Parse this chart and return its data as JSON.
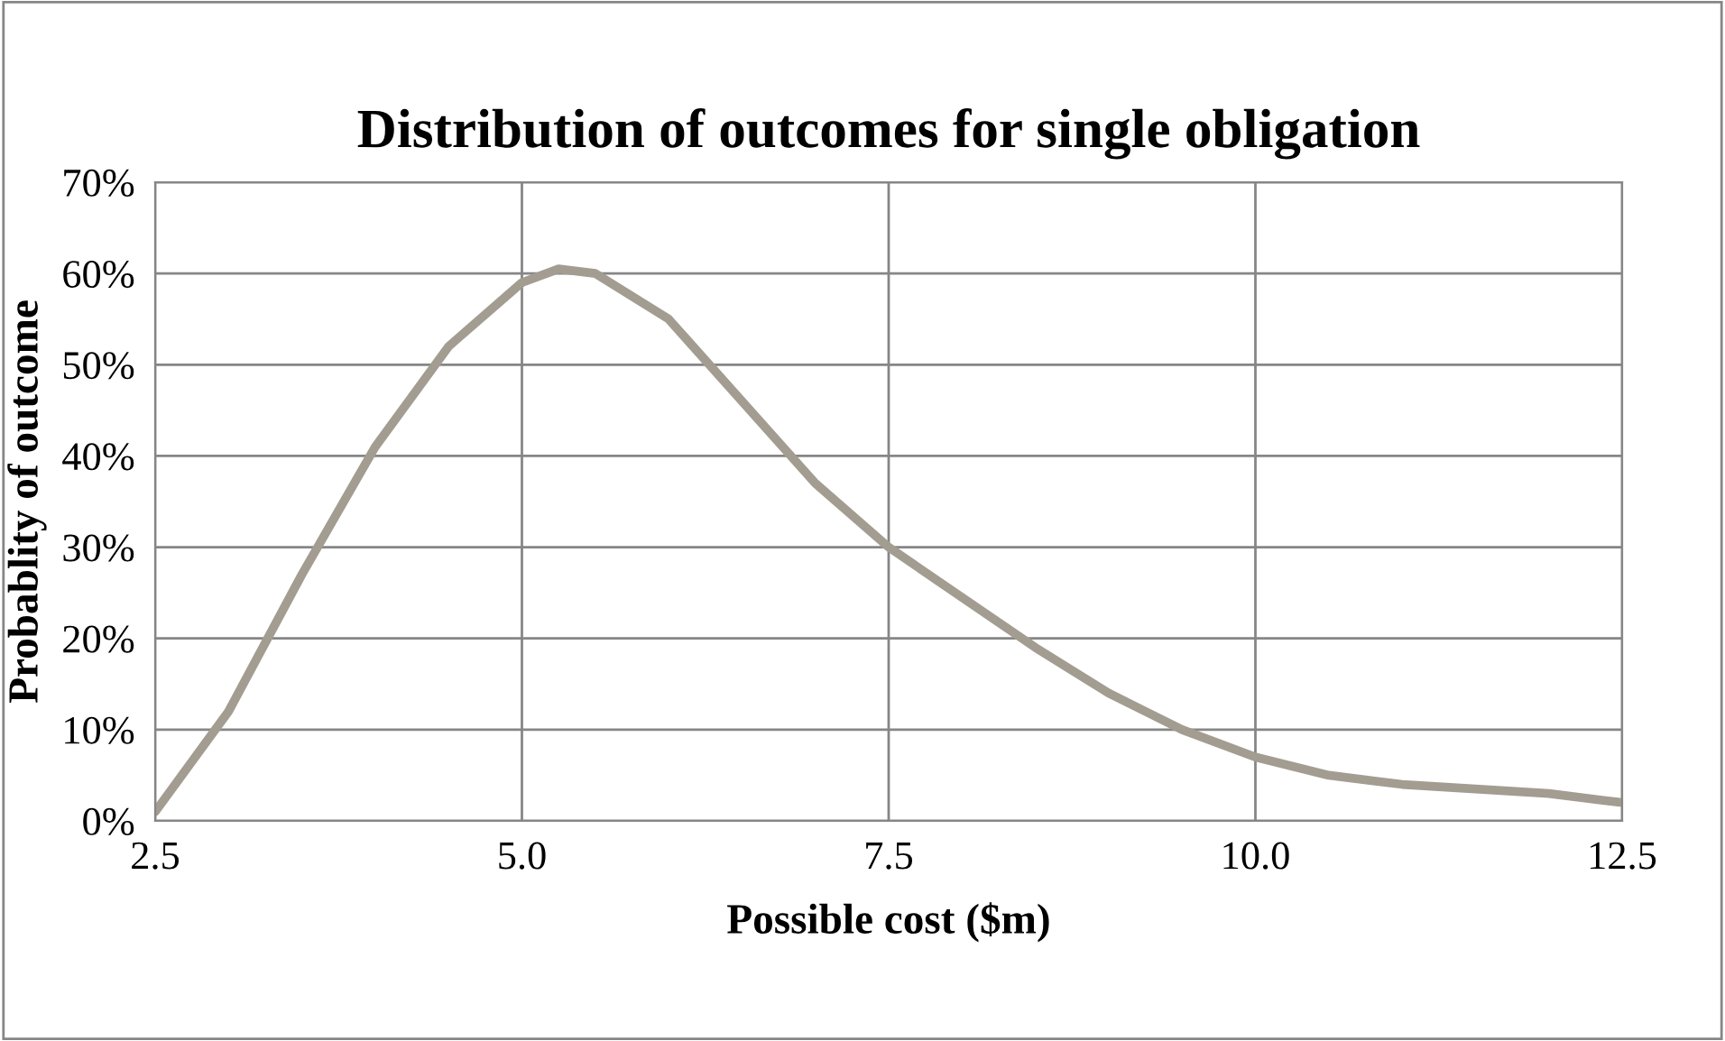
{
  "chart_data": {
    "type": "line",
    "title": "Distribution of outcomes for single obligation",
    "xlabel": "Possible cost ($m)",
    "ylabel": "Probablity of outcome",
    "x": [
      2.5,
      3.0,
      3.5,
      4.0,
      4.5,
      5.0,
      5.25,
      5.5,
      6.0,
      6.5,
      7.0,
      7.5,
      8.0,
      8.5,
      9.0,
      9.5,
      10.0,
      10.5,
      11.0,
      11.5,
      12.0,
      12.5
    ],
    "series": [
      {
        "color": "#a39d91",
        "values": [
          1,
          12,
          27,
          41,
          52,
          59,
          60.5,
          60,
          55,
          46,
          37,
          30,
          24.5,
          19,
          14,
          10,
          7,
          5,
          4,
          3.5,
          3,
          2
        ]
      }
    ],
    "xlim": [
      2.5,
      12.5
    ],
    "xticks": [
      {
        "value": 2.5,
        "label": "2.5"
      },
      {
        "value": 5,
        "label": "5.0"
      },
      {
        "value": 7.5,
        "label": "7.5"
      },
      {
        "value": 10,
        "label": "10.0"
      },
      {
        "value": 12.5,
        "label": "12.5"
      }
    ],
    "ylim": [
      0,
      70
    ],
    "yticks": [
      {
        "value": 0,
        "label": "0%"
      },
      {
        "value": 10,
        "label": "10%"
      },
      {
        "value": 20,
        "label": "20%"
      },
      {
        "value": 30,
        "label": "30%"
      },
      {
        "value": 40,
        "label": "40%"
      },
      {
        "value": 50,
        "label": "50%"
      },
      {
        "value": 60,
        "label": "60%"
      },
      {
        "value": 70,
        "label": "70%"
      }
    ],
    "grid": true,
    "legend": false
  }
}
